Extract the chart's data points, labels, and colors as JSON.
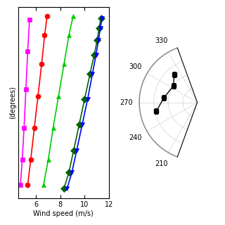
{
  "left_panel": {
    "xlabel": "Wind speed (m/s)",
    "ylabel": "(degrees)",
    "xlim": [
      4.5,
      12
    ],
    "ylim": [
      0,
      300
    ],
    "xticks": [
      6,
      8,
      10,
      12
    ],
    "series": [
      {
        "color": "#FF00FF",
        "marker": "s",
        "x": [
          4.7,
          4.85,
          5.0,
          5.15,
          5.3,
          5.45
        ],
        "y": [
          20,
          60,
          110,
          170,
          230,
          280
        ]
      },
      {
        "color": "red",
        "marker": "o",
        "x": [
          5.3,
          5.55,
          5.85,
          6.15,
          6.45,
          6.7,
          6.9
        ],
        "y": [
          20,
          60,
          110,
          160,
          210,
          255,
          285
        ]
      },
      {
        "color": "#00CC00",
        "marker": "^",
        "x": [
          6.6,
          7.0,
          7.4,
          7.85,
          8.3,
          8.7,
          9.05
        ],
        "y": [
          20,
          60,
          110,
          160,
          210,
          255,
          285
        ]
      },
      {
        "color": "#006600",
        "marker": "D",
        "x": [
          8.3,
          8.7,
          9.1,
          9.55,
          10.0,
          10.45,
          10.8,
          11.05,
          11.2,
          11.35
        ],
        "y": [
          15,
          40,
          75,
          115,
          155,
          195,
          225,
          248,
          267,
          282
        ]
      },
      {
        "color": "blue",
        "marker": "v",
        "x": [
          8.55,
          8.95,
          9.35,
          9.8,
          10.25,
          10.65,
          10.95,
          11.15,
          11.3,
          11.45
        ],
        "y": [
          15,
          40,
          75,
          115,
          155,
          195,
          225,
          248,
          267,
          282
        ]
      }
    ]
  },
  "right_panel": {
    "theta_labels_deg": [
      330,
      300,
      270,
      240,
      210
    ],
    "data_angles_deg": [
      320,
      305,
      278,
      258
    ],
    "data_r": [
      0.62,
      0.5,
      0.58,
      0.72
    ],
    "rmax": 1.0,
    "r_ticks": [
      0.25,
      0.5,
      0.75,
      1.0
    ],
    "marker": "s",
    "color": "black",
    "linecolor": "black"
  }
}
